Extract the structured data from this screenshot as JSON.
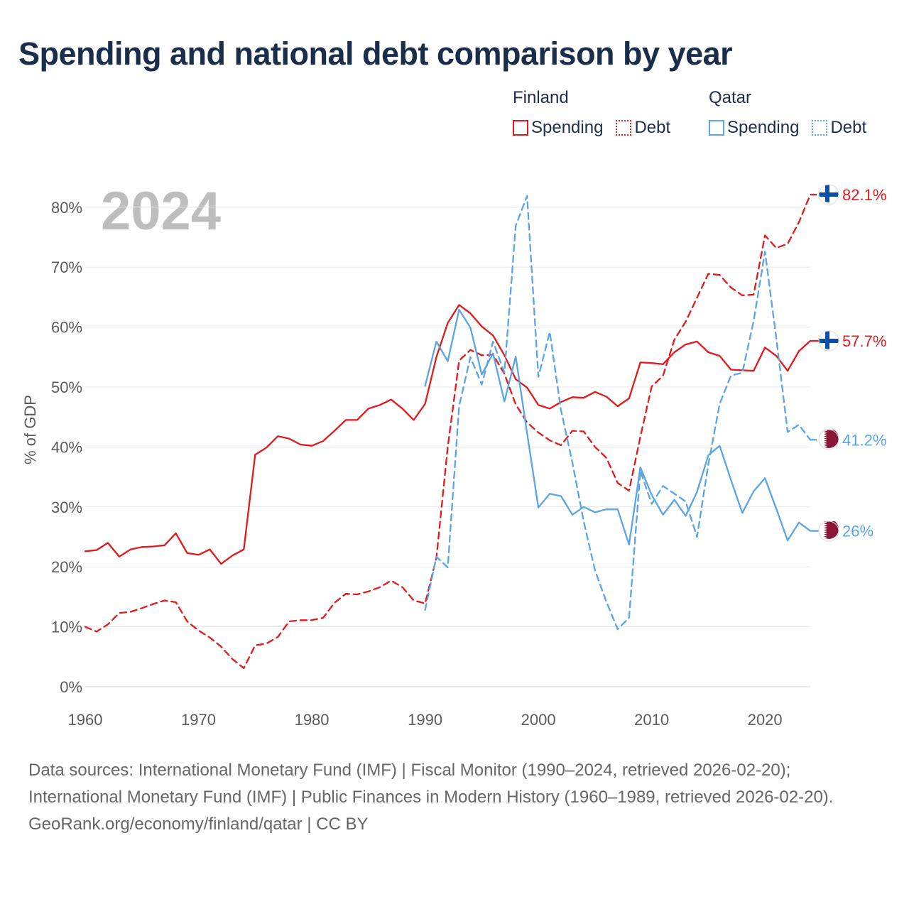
{
  "title": "Spending and national debt comparison by year",
  "legend": {
    "finland": {
      "country": "Finland",
      "spending": "Spending",
      "debt": "Debt",
      "color": "#e31a1c"
    },
    "qatar": {
      "country": "Qatar",
      "spending": "Spending",
      "debt": "Debt",
      "color": "#5ba4e5"
    }
  },
  "year_label": "2024",
  "sources_text": "Data sources: International Monetary Fund (IMF) | Fiscal Monitor (1990–2024, retrieved 2026-02-20); International Monetary Fund (IMF) | Public Finances in Modern History (1960–1989, retrieved 2026-02-20).",
  "credit": "GeoRank.org/economy/finland/qatar | CC BY",
  "chart_data": {
    "type": "line",
    "title": "Spending and national debt comparison by year",
    "xlabel": "",
    "ylabel": "% of GDP",
    "xlim": [
      1960,
      2024
    ],
    "ylim": [
      0,
      82
    ],
    "x_ticks": [
      1960,
      1970,
      1980,
      1990,
      2000,
      2010,
      2020
    ],
    "x_tick_labels": [
      "1960",
      "1970",
      "1980",
      "1990",
      "2000",
      "2010",
      "2020"
    ],
    "y_ticks": [
      0,
      10,
      20,
      30,
      40,
      50,
      60,
      70,
      80
    ],
    "y_tick_labels": [
      "0%",
      "10%",
      "20%",
      "30%",
      "40%",
      "50%",
      "60%",
      "70%",
      "80%"
    ],
    "grid": true,
    "legend_position": "top-right",
    "series": [
      {
        "key": "finland_spending",
        "name": "Finland Spending",
        "country": "Finland",
        "style": "solid",
        "color": "#e31a1c",
        "end_label": "57.7%",
        "flag": "finland",
        "start": 1960,
        "values": [
          22.6,
          22.8,
          24.0,
          21.7,
          22.9,
          23.3,
          23.4,
          23.6,
          25.6,
          22.3,
          22.0,
          22.9,
          20.5,
          21.9,
          22.9,
          38.7,
          39.9,
          41.8,
          41.4,
          40.4,
          40.2,
          41.0,
          42.7,
          44.5,
          44.5,
          46.4,
          47.0,
          47.9,
          46.4,
          44.5,
          47.2,
          55.0,
          60.7,
          63.7,
          62.3,
          60.1,
          58.6,
          55.3,
          51.3,
          49.9,
          47.0,
          46.4,
          47.5,
          48.3,
          48.2,
          49.2,
          48.4,
          46.8,
          48.1,
          54.1,
          54.0,
          53.8,
          55.8,
          57.1,
          57.6,
          55.8,
          55.2,
          52.9,
          52.8,
          52.7,
          56.6,
          55.2,
          52.7,
          56.0,
          57.7
        ]
      },
      {
        "key": "finland_debt",
        "name": "Finland Debt",
        "country": "Finland",
        "style": "dashed",
        "color": "#e31a1c",
        "end_label": "82.1%",
        "flag": "finland",
        "start": 1960,
        "values": [
          10.0,
          9.2,
          10.4,
          12.3,
          12.5,
          13.1,
          13.8,
          14.4,
          14.1,
          10.9,
          9.4,
          8.2,
          6.7,
          4.6,
          3.1,
          6.9,
          7.2,
          8.3,
          10.9,
          11.1,
          11.1,
          11.5,
          14.0,
          15.5,
          15.4,
          15.9,
          16.6,
          17.7,
          16.6,
          14.4,
          13.9,
          21.5,
          40.0,
          54.4,
          56.2,
          55.3,
          55.4,
          52.2,
          47.1,
          44.1,
          42.4,
          41.1,
          40.3,
          42.7,
          42.6,
          40.0,
          38.2,
          34.0,
          32.7,
          41.7,
          50.1,
          51.9,
          57.9,
          60.9,
          64.9,
          68.9,
          68.7,
          66.6,
          65.3,
          65.4,
          75.3,
          73.2,
          73.9,
          77.5,
          82.1
        ]
      },
      {
        "key": "qatar_spending",
        "name": "Qatar Spending",
        "country": "Qatar",
        "style": "solid",
        "color": "#5ba4e5",
        "end_label": "26%",
        "flag": "qatar",
        "start": 1990,
        "values": [
          50.2,
          57.6,
          54.3,
          62.9,
          59.9,
          52.1,
          55.6,
          47.6,
          55.1,
          42.3,
          29.9,
          32.2,
          31.8,
          28.7,
          30.0,
          29.1,
          29.6,
          29.6,
          23.7,
          36.6,
          32.0,
          28.7,
          31.2,
          28.5,
          32.5,
          38.6,
          40.2,
          34.5,
          29.0,
          32.6,
          34.8,
          29.7,
          24.4,
          27.4,
          26.0
        ]
      },
      {
        "key": "qatar_debt",
        "name": "Qatar Debt",
        "country": "Qatar",
        "style": "dashed",
        "color": "#5ba4e5",
        "end_label": "41.2%",
        "flag": "qatar",
        "start": 1990,
        "values": [
          12.8,
          21.7,
          19.9,
          46.8,
          55.0,
          50.4,
          57.6,
          52.4,
          76.9,
          81.9,
          51.7,
          59.2,
          46.1,
          37.4,
          27.6,
          19.4,
          14.2,
          9.6,
          11.5,
          36.0,
          30.5,
          33.5,
          32.2,
          30.9,
          25.0,
          37.1,
          47.2,
          51.9,
          52.4,
          61.0,
          72.6,
          58.2,
          42.5,
          43.7,
          41.2
        ]
      }
    ]
  }
}
